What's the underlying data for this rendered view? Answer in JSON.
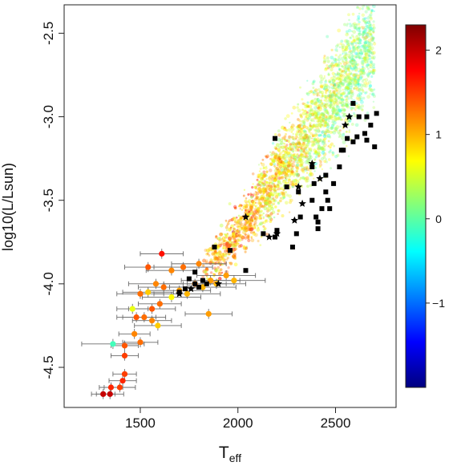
{
  "chart_data": {
    "type": "scatter",
    "xlabel": "T",
    "xlabel_sub": "eff",
    "ylabel": "log10(L/Lsun)",
    "xlim": [
      1110,
      2810
    ],
    "ylim": [
      -4.74,
      -2.33
    ],
    "x_ticks": [
      1500,
      2000,
      2500
    ],
    "x_tick_labels": [
      "1500",
      "2000",
      "2500"
    ],
    "y_ticks": [
      -2.5,
      -3.0,
      -3.5,
      -4.0,
      -4.5
    ],
    "y_tick_labels": [
      "-2.5",
      "-3.0",
      "-3.5",
      "-4.0",
      "-4.5"
    ],
    "colorbar": {
      "range": [
        -2.0,
        2.3
      ],
      "ticks": [
        2,
        1,
        0,
        -1
      ],
      "tick_labels": [
        "2",
        "1",
        "0",
        "−1"
      ],
      "colormap": [
        "#00007f",
        "#0000ff",
        "#007fff",
        "#00ffff",
        "#7fff7f",
        "#ffff00",
        "#ff7f00",
        "#ff0000",
        "#7f0000"
      ]
    },
    "model_cloud": {
      "description": "dense cloud of small faint points colored by the colorbar quantity",
      "locus": [
        [
          1700,
          -4.08,
          1.0
        ],
        [
          2000,
          -3.7,
          1.1
        ],
        [
          2200,
          -3.35,
          0.8
        ],
        [
          2400,
          -3.05,
          0.5
        ],
        [
          2550,
          -2.8,
          0.3
        ],
        [
          2680,
          -2.55,
          0.2
        ]
      ]
    },
    "series": [
      {
        "marker": "circle_with_errorbars",
        "points": [
          {
            "x": 1310,
            "y": -4.66,
            "xerr": 60,
            "yerr": 0.03,
            "c": 2.0
          },
          {
            "x": 1345,
            "y": -4.66,
            "xerr": 70,
            "yerr": 0.03,
            "c": 2.0
          },
          {
            "x": 1350,
            "y": -4.62,
            "xerr": 60,
            "yerr": 0.03,
            "c": 1.6
          },
          {
            "x": 1395,
            "y": -4.62,
            "xerr": 80,
            "yerr": 0.03,
            "c": 1.5
          },
          {
            "x": 1410,
            "y": -4.58,
            "xerr": 70,
            "yerr": 0.03,
            "c": 1.6
          },
          {
            "x": 1420,
            "y": -4.54,
            "xerr": 60,
            "yerr": 0.03,
            "c": 1.5
          },
          {
            "x": 1360,
            "y": -4.36,
            "xerr": 160,
            "yerr": 0.03,
            "c": -0.1
          },
          {
            "x": 1420,
            "y": -4.37,
            "xerr": 70,
            "yerr": 0.03,
            "c": 1.4
          },
          {
            "x": 1420,
            "y": -4.43,
            "xerr": 70,
            "yerr": 0.03,
            "c": 1.5
          },
          {
            "x": 1470,
            "y": -4.3,
            "xerr": 80,
            "yerr": 0.03,
            "c": 1.2
          },
          {
            "x": 1500,
            "y": -4.35,
            "xerr": 90,
            "yerr": 0.03,
            "c": 1.3
          },
          {
            "x": 1480,
            "y": -4.2,
            "xerr": 100,
            "yerr": 0.03,
            "c": 1.4
          },
          {
            "x": 1520,
            "y": -4.2,
            "xerr": 110,
            "yerr": 0.03,
            "c": 1.3
          },
          {
            "x": 1560,
            "y": -4.22,
            "xerr": 100,
            "yerr": 0.03,
            "c": 1.2
          },
          {
            "x": 1560,
            "y": -4.15,
            "xerr": 120,
            "yerr": 0.03,
            "c": 1.4
          },
          {
            "x": 1600,
            "y": -4.12,
            "xerr": 110,
            "yerr": 0.03,
            "c": 1.3
          },
          {
            "x": 1500,
            "y": -4.06,
            "xerr": 120,
            "yerr": 0.03,
            "c": 1.3
          },
          {
            "x": 1540,
            "y": -4.05,
            "xerr": 130,
            "yerr": 0.03,
            "c": 0.9
          },
          {
            "x": 1580,
            "y": -4.0,
            "xerr": 140,
            "yerr": 0.03,
            "c": 1.2
          },
          {
            "x": 1620,
            "y": -4.02,
            "xerr": 130,
            "yerr": 0.03,
            "c": 1.3
          },
          {
            "x": 1660,
            "y": -4.08,
            "xerr": 150,
            "yerr": 0.03,
            "c": 0.7
          },
          {
            "x": 1700,
            "y": -4.04,
            "xerr": 160,
            "yerr": 0.03,
            "c": 1.1
          },
          {
            "x": 1740,
            "y": -4.06,
            "xerr": 170,
            "yerr": 0.03,
            "c": 1.0
          },
          {
            "x": 1780,
            "y": -4.0,
            "xerr": 160,
            "yerr": 0.03,
            "c": 1.2
          },
          {
            "x": 1820,
            "y": -4.02,
            "xerr": 170,
            "yerr": 0.03,
            "c": 1.0
          },
          {
            "x": 1860,
            "y": -3.98,
            "xerr": 150,
            "yerr": 0.03,
            "c": 1.1
          },
          {
            "x": 1540,
            "y": -3.9,
            "xerr": 120,
            "yerr": 0.03,
            "c": 1.4
          },
          {
            "x": 1610,
            "y": -3.82,
            "xerr": 110,
            "yerr": 0.03,
            "c": 1.7
          },
          {
            "x": 1660,
            "y": -3.92,
            "xerr": 130,
            "yerr": 0.03,
            "c": 1.2
          },
          {
            "x": 1720,
            "y": -3.9,
            "xerr": 150,
            "yerr": 0.03,
            "c": 1.3
          },
          {
            "x": 1800,
            "y": -3.88,
            "xerr": 140,
            "yerr": 0.03,
            "c": 1.2
          },
          {
            "x": 1850,
            "y": -4.18,
            "xerr": 120,
            "yerr": 0.03,
            "c": 1.1
          },
          {
            "x": 1890,
            "y": -4.0,
            "xerr": 150,
            "yerr": 0.03,
            "c": 1.0
          },
          {
            "x": 1940,
            "y": -3.95,
            "xerr": 150,
            "yerr": 0.03,
            "c": 1.1
          },
          {
            "x": 1980,
            "y": -3.98,
            "xerr": 160,
            "yerr": 0.03,
            "c": 1.0
          },
          {
            "x": 1460,
            "y": -4.15,
            "xerr": 80,
            "yerr": 0.03,
            "c": 0.6
          },
          {
            "x": 1590,
            "y": -4.25,
            "xerr": 120,
            "yerr": 0.03,
            "c": 0.9
          }
        ]
      },
      {
        "marker": "filled_square",
        "color": "#000000",
        "points": [
          {
            "x": 1700,
            "y": -4.05
          },
          {
            "x": 1730,
            "y": -4.03
          },
          {
            "x": 1750,
            "y": -3.97
          },
          {
            "x": 1780,
            "y": -4.0
          },
          {
            "x": 1800,
            "y": -4.02
          },
          {
            "x": 1820,
            "y": -3.98
          },
          {
            "x": 1840,
            "y": -4.0
          },
          {
            "x": 1780,
            "y": -3.93
          },
          {
            "x": 1880,
            "y": -3.78
          },
          {
            "x": 1960,
            "y": -3.8
          },
          {
            "x": 2040,
            "y": -3.92
          },
          {
            "x": 2130,
            "y": -3.7
          },
          {
            "x": 2190,
            "y": -3.72
          },
          {
            "x": 2200,
            "y": -3.68
          },
          {
            "x": 2250,
            "y": -3.42
          },
          {
            "x": 2300,
            "y": -3.7
          },
          {
            "x": 2310,
            "y": -3.45
          },
          {
            "x": 2320,
            "y": -3.6
          },
          {
            "x": 2380,
            "y": -3.5
          },
          {
            "x": 2390,
            "y": -3.4
          },
          {
            "x": 2400,
            "y": -3.6
          },
          {
            "x": 2410,
            "y": -3.63
          },
          {
            "x": 2430,
            "y": -3.55
          },
          {
            "x": 2450,
            "y": -3.35
          },
          {
            "x": 2460,
            "y": -3.5
          },
          {
            "x": 2490,
            "y": -3.4
          },
          {
            "x": 2520,
            "y": -3.3
          },
          {
            "x": 2540,
            "y": -3.2
          },
          {
            "x": 2560,
            "y": -3.13
          },
          {
            "x": 2590,
            "y": -3.15
          },
          {
            "x": 2610,
            "y": -3.12
          },
          {
            "x": 2620,
            "y": -3.0
          },
          {
            "x": 2650,
            "y": -3.1
          },
          {
            "x": 2660,
            "y": -3.14
          },
          {
            "x": 2680,
            "y": -3.05
          },
          {
            "x": 2700,
            "y": -3.18
          },
          {
            "x": 2710,
            "y": -2.98
          },
          {
            "x": 2190,
            "y": -3.13
          },
          {
            "x": 2590,
            "y": -2.92
          },
          {
            "x": 2660,
            "y": -3.0
          },
          {
            "x": 2380,
            "y": -3.3
          },
          {
            "x": 2450,
            "y": -3.45
          },
          {
            "x": 2470,
            "y": -3.55
          },
          {
            "x": 2410,
            "y": -3.67
          },
          {
            "x": 2280,
            "y": -3.78
          },
          {
            "x": 2530,
            "y": -3.2
          }
        ]
      },
      {
        "marker": "star",
        "color": "#000000",
        "points": [
          {
            "x": 1700,
            "y": -4.06
          },
          {
            "x": 1760,
            "y": -4.03
          },
          {
            "x": 1900,
            "y": -4.0
          },
          {
            "x": 2040,
            "y": -3.6
          },
          {
            "x": 2160,
            "y": -3.72
          },
          {
            "x": 2200,
            "y": -3.7
          },
          {
            "x": 2290,
            "y": -3.62
          },
          {
            "x": 2310,
            "y": -3.42
          },
          {
            "x": 2330,
            "y": -3.52
          },
          {
            "x": 2380,
            "y": -3.28
          },
          {
            "x": 2420,
            "y": -3.37
          },
          {
            "x": 2550,
            "y": -3.05
          },
          {
            "x": 2570,
            "y": -3.0
          }
        ]
      }
    ]
  }
}
